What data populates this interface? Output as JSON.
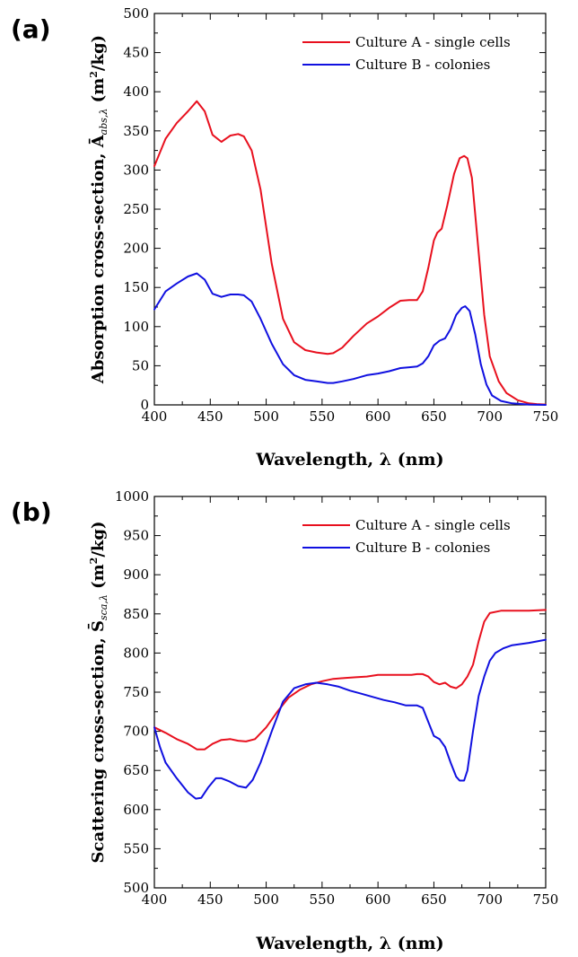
{
  "chart_data": [
    {
      "type": "line",
      "panel_label": "(a)",
      "xlabel": "Wavelength,  λ (nm)",
      "ylabel": "Absorption cross-section,  Ā",
      "ylabel_subscript": "abs,λ",
      "ylabel_unit": "  (m",
      "ylabel_unit_sup": "2",
      "ylabel_unit_end": "/kg)",
      "xlim": [
        400,
        750
      ],
      "ylim": [
        0,
        500
      ],
      "xticks": [
        400,
        450,
        500,
        550,
        600,
        650,
        700,
        750
      ],
      "yticks": [
        0,
        50,
        100,
        150,
        200,
        250,
        300,
        350,
        400,
        450,
        500
      ],
      "grid": false,
      "legend_position": "top-right",
      "series": [
        {
          "name": "Culture A - single cells",
          "color": "#e8101e",
          "x": [
            400,
            410,
            420,
            430,
            438,
            445,
            452,
            460,
            468,
            475,
            480,
            487,
            495,
            505,
            515,
            525,
            535,
            545,
            555,
            560,
            568,
            578,
            590,
            600,
            610,
            620,
            628,
            635,
            640,
            645,
            650,
            653,
            657,
            662,
            668,
            673,
            677,
            680,
            684,
            690,
            695,
            700,
            708,
            715,
            725,
            735,
            742,
            750
          ],
          "y": [
            305,
            340,
            360,
            375,
            388,
            375,
            345,
            336,
            344,
            346,
            343,
            325,
            275,
            180,
            110,
            80,
            70,
            67,
            65,
            66,
            73,
            88,
            104,
            113,
            124,
            133,
            134,
            134,
            145,
            175,
            210,
            220,
            225,
            255,
            295,
            315,
            318,
            315,
            290,
            195,
            115,
            62,
            30,
            15,
            6,
            2,
            1,
            0.5
          ]
        },
        {
          "name": "Culture B - colonies",
          "color": "#1010e0",
          "x": [
            400,
            410,
            420,
            430,
            438,
            445,
            452,
            460,
            468,
            475,
            480,
            487,
            495,
            505,
            515,
            525,
            535,
            545,
            555,
            560,
            568,
            578,
            590,
            600,
            610,
            620,
            628,
            635,
            640,
            645,
            650,
            655,
            660,
            665,
            670,
            675,
            678,
            682,
            687,
            692,
            697,
            702,
            710,
            720,
            735,
            750
          ],
          "y": [
            122,
            145,
            155,
            164,
            168,
            160,
            142,
            138,
            141,
            141,
            140,
            132,
            110,
            78,
            52,
            38,
            32,
            30,
            28,
            28,
            30,
            33,
            38,
            40,
            43,
            47,
            48,
            49,
            53,
            62,
            76,
            82,
            85,
            97,
            115,
            124,
            126,
            120,
            90,
            52,
            26,
            12,
            5,
            2,
            0.5,
            0
          ]
        }
      ]
    },
    {
      "type": "line",
      "panel_label": "(b)",
      "xlabel": "Wavelength,  λ (nm)",
      "ylabel": "Scattering cross-section,  S̄",
      "ylabel_subscript": "sca,λ",
      "ylabel_unit": "  (m",
      "ylabel_unit_sup": "2",
      "ylabel_unit_end": "/kg)",
      "xlim": [
        400,
        750
      ],
      "ylim": [
        500,
        1000
      ],
      "xticks": [
        400,
        450,
        500,
        550,
        600,
        650,
        700,
        750
      ],
      "yticks": [
        500,
        550,
        600,
        650,
        700,
        750,
        800,
        850,
        900,
        950,
        1000
      ],
      "grid": false,
      "legend_position": "top-right",
      "series": [
        {
          "name": "Culture A - single cells",
          "color": "#e8101e",
          "x": [
            400,
            410,
            420,
            430,
            438,
            445,
            452,
            460,
            468,
            475,
            482,
            490,
            500,
            510,
            520,
            530,
            540,
            550,
            560,
            570,
            580,
            590,
            600,
            610,
            620,
            630,
            635,
            640,
            645,
            650,
            655,
            660,
            665,
            670,
            675,
            680,
            685,
            690,
            695,
            700,
            710,
            720,
            735,
            750
          ],
          "y": [
            705,
            698,
            690,
            684,
            677,
            677,
            684,
            689,
            690,
            688,
            687,
            690,
            705,
            725,
            743,
            753,
            760,
            764,
            767,
            768,
            769,
            770,
            772,
            772,
            772,
            772,
            773,
            773,
            770,
            763,
            760,
            762,
            757,
            755,
            760,
            770,
            785,
            815,
            840,
            851,
            854,
            854,
            854,
            855
          ]
        },
        {
          "name": "Culture B - colonies",
          "color": "#1010e0",
          "x": [
            400,
            405,
            410,
            420,
            430,
            437,
            442,
            448,
            455,
            460,
            467,
            475,
            482,
            488,
            495,
            505,
            515,
            525,
            535,
            545,
            555,
            565,
            575,
            585,
            595,
            605,
            615,
            625,
            635,
            640,
            645,
            650,
            655,
            660,
            665,
            670,
            673,
            677,
            680,
            685,
            690,
            695,
            700,
            705,
            712,
            720,
            735,
            750
          ],
          "y": [
            705,
            680,
            660,
            640,
            622,
            614,
            615,
            628,
            640,
            640,
            636,
            630,
            628,
            638,
            660,
            700,
            738,
            755,
            760,
            762,
            760,
            757,
            752,
            748,
            744,
            740,
            737,
            733,
            733,
            730,
            712,
            694,
            690,
            680,
            660,
            642,
            637,
            637,
            650,
            700,
            745,
            770,
            790,
            800,
            806,
            810,
            813,
            817
          ]
        }
      ]
    }
  ]
}
